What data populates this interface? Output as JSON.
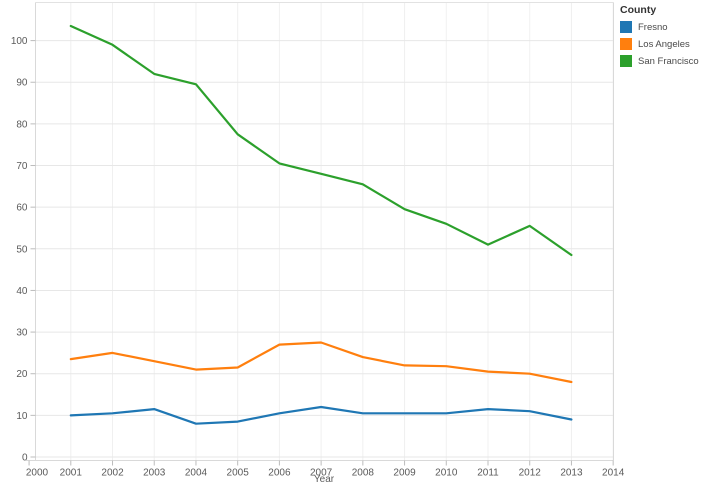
{
  "legend": {
    "title": "County",
    "items": [
      {
        "label": "Fresno",
        "color": "#1f77b4"
      },
      {
        "label": "Los Angeles",
        "color": "#ff7f0e"
      },
      {
        "label": "San Francisco",
        "color": "#2ca02c"
      }
    ]
  },
  "chart_data": {
    "type": "line",
    "title": "",
    "xlabel": "Year",
    "ylabel": "",
    "x": [
      2001,
      2002,
      2003,
      2004,
      2005,
      2006,
      2007,
      2008,
      2009,
      2010,
      2011,
      2012,
      2013
    ],
    "series": [
      {
        "name": "Fresno",
        "color": "#1f77b4",
        "values": [
          10,
          10.5,
          11.5,
          8,
          8.5,
          10.5,
          12,
          10.5,
          10.5,
          10.5,
          11.5,
          11,
          9
        ]
      },
      {
        "name": "Los Angeles",
        "color": "#ff7f0e",
        "values": [
          23.5,
          25,
          23,
          21,
          21.5,
          27,
          27.5,
          24,
          22,
          21.8,
          20.5,
          20,
          18
        ]
      },
      {
        "name": "San Francisco",
        "color": "#2ca02c",
        "values": [
          103.5,
          99,
          92,
          89.5,
          77.5,
          70.5,
          68,
          65.5,
          59.5,
          56,
          51,
          55.5,
          48.5
        ]
      }
    ],
    "x_ticks": [
      2000,
      2001,
      2002,
      2003,
      2004,
      2005,
      2006,
      2007,
      2008,
      2009,
      2010,
      2011,
      2012,
      2013,
      2014
    ],
    "y_ticks": [
      0,
      10,
      20,
      30,
      40,
      50,
      60,
      70,
      80,
      90,
      100
    ],
    "xlim": [
      2000,
      2014
    ],
    "ylim": [
      0,
      109
    ],
    "grid": true,
    "legend_position": "top-right",
    "legend_title": "County"
  }
}
